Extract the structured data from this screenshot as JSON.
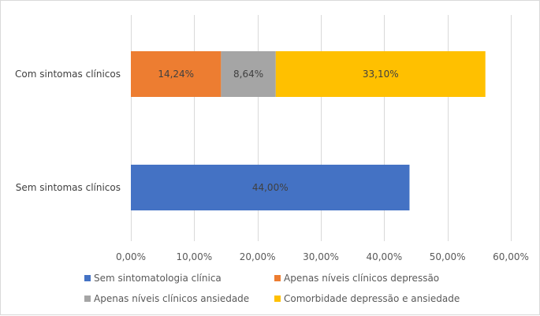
{
  "chart_data": {
    "type": "bar",
    "orientation": "horizontal",
    "stacked": true,
    "categories": [
      "Com sintomas clínicos",
      "Sem sintomas clínicos"
    ],
    "series": [
      {
        "name": "Sem sintomatologia clínica",
        "color": "#4472c4",
        "values": [
          0,
          44.0
        ],
        "labels": [
          "",
          "44,00%"
        ]
      },
      {
        "name": "Apenas níveis clínicos depressão",
        "color": "#ed7d31",
        "values": [
          14.24,
          0
        ],
        "labels": [
          "14,24%",
          ""
        ]
      },
      {
        "name": "Apenas níveis clínicos ansiedade",
        "color": "#a5a5a5",
        "values": [
          8.64,
          0
        ],
        "labels": [
          "8,64%",
          ""
        ]
      },
      {
        "name": "Comorbidade depressão e ansiedade",
        "color": "#ffc000",
        "values": [
          33.1,
          0
        ],
        "labels": [
          "33,10%",
          ""
        ]
      }
    ],
    "xlim": [
      0,
      60
    ],
    "xticks": [
      0,
      10,
      20,
      30,
      40,
      50,
      60
    ],
    "xtick_labels": [
      "0,00%",
      "10,00%",
      "20,00%",
      "30,00%",
      "40,00%",
      "50,00%",
      "60,00%"
    ],
    "grid": true,
    "legend_position": "bottom",
    "gridline_color": "#d9d9d9",
    "label_color": "#404040"
  }
}
